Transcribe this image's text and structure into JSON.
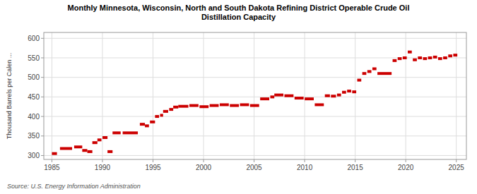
{
  "chart_data": {
    "type": "segment",
    "title": "Monthly Minnesota, Wisconsin, North and South Dakota Refining District Operable Crude Oil\nDistillation Capacity",
    "ylabel": "Thousand Barrels per Calen ...",
    "source": "Source: U.S. Energy Information Administration",
    "color": "#cc0000",
    "grid": true,
    "xlim": [
      1984.2,
      2026.0
    ],
    "ylim": [
      290,
      615
    ],
    "xticks": [
      1985,
      1990,
      1995,
      2000,
      2005,
      2010,
      2015,
      2020,
      2025
    ],
    "yticks": [
      300,
      350,
      400,
      450,
      500,
      550,
      600
    ],
    "x": [
      1985.0,
      1985.8,
      1987.2,
      1988.0,
      1988.5,
      1989.0,
      1989.5,
      1990.0,
      1990.5,
      1991.0,
      1992.0,
      1993.7,
      1994.2,
      1994.7,
      1995.2,
      1995.7,
      1996.0,
      1996.6,
      1997.0,
      1997.5,
      1998.6,
      1999.6,
      2000.6,
      2001.6,
      2002.6,
      2003.6,
      2004.6,
      2005.6,
      2006.6,
      2007.0,
      2008.0,
      2009.0,
      2010.0,
      2011.0,
      2012.0,
      2012.6,
      2013.2,
      2013.7,
      2014.2,
      2014.7,
      2015.2,
      2015.7,
      2016.2,
      2016.7,
      2017.2,
      2018.7,
      2019.2,
      2019.7,
      2020.2,
      2020.7,
      2021.2,
      2021.7,
      2022.2,
      2022.7,
      2023.2,
      2023.7,
      2024.2,
      2024.7
    ],
    "x_end": [
      1985.5,
      1987.0,
      1988.0,
      1988.5,
      1989.0,
      1989.5,
      1989.9,
      1990.5,
      1991.0,
      1991.8,
      1993.5,
      1994.2,
      1994.6,
      1995.2,
      1995.6,
      1996.0,
      1996.5,
      1997.0,
      1997.5,
      1998.5,
      1999.5,
      2000.5,
      2001.5,
      2002.5,
      2003.5,
      2004.5,
      2005.5,
      2006.5,
      2007.0,
      2007.9,
      2008.9,
      2009.9,
      2010.9,
      2011.9,
      2012.5,
      2013.1,
      2013.6,
      2014.1,
      2014.6,
      2015.1,
      2015.6,
      2016.1,
      2016.6,
      2017.1,
      2018.6,
      2019.1,
      2019.6,
      2020.1,
      2020.6,
      2021.1,
      2021.6,
      2022.1,
      2022.6,
      2023.1,
      2023.6,
      2024.1,
      2024.6,
      2025.1
    ],
    "values": [
      305,
      318,
      322,
      313,
      310,
      333,
      340,
      346,
      310,
      358,
      358,
      380,
      376,
      386,
      400,
      403,
      413,
      418,
      424,
      426,
      428,
      425,
      428,
      430,
      428,
      430,
      428,
      445,
      450,
      455,
      453,
      447,
      445,
      430,
      453,
      452,
      455,
      462,
      465,
      463,
      493,
      510,
      515,
      522,
      510,
      543,
      548,
      550,
      565,
      545,
      550,
      548,
      550,
      552,
      548,
      550,
      555,
      557
    ]
  }
}
